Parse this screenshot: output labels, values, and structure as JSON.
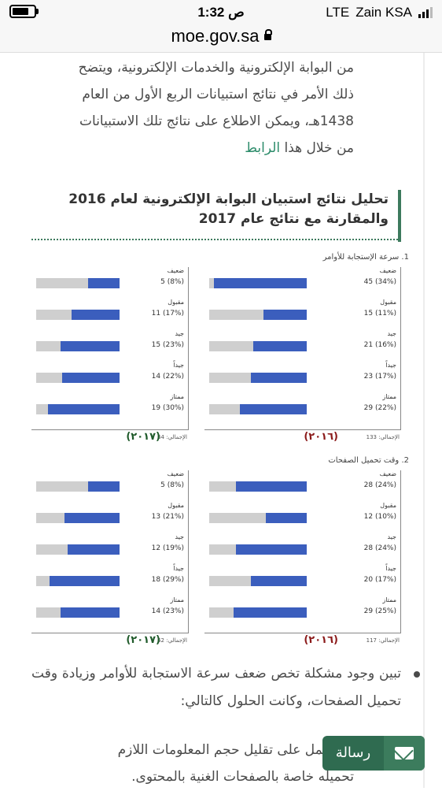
{
  "status_bar": {
    "time": "1:32 ص",
    "network": "LTE",
    "carrier": "Zain KSA"
  },
  "browser": {
    "url": "moe.gov.sa"
  },
  "article": {
    "paragraph_lines": [
      "من البوابة الإلكترونية والخدمات الإلكترونية، ويتضح",
      "ذلك الأمر في نتائج استبيانات الربع الأول من العام",
      "1438هـ، ويمكن الاطلاع على نتائج تلك الاستبيانات"
    ],
    "paragraph_last_prefix": "من خلال هذا ",
    "link_text": "الرابط",
    "heading_line1": "تحليل نتائج استبيان البوابة الإلكترونية لعام 2016",
    "heading_line2": "والمقارنة مع نتائج عام 2017",
    "bullet_text": "تبين وجود مشكلة تخص ضعف سرعة الاستجابة للأوامر وزيادة وقت تحميل الصفحات، وكانت الحلول كالتالي:",
    "bullet2_line1": "تم العمل على تقليل حجم المعلومات اللازم",
    "bullet2_line2": "تحميله خاصة بالصفحات الغنية بالمحتوى."
  },
  "chart_data": [
    {
      "type": "bar",
      "title": "1. سرعة الإستجابة للأوامر",
      "categories": [
        "ضعيف",
        "مقبول",
        "جيد",
        "جيداً",
        "ممتاز"
      ],
      "series": [
        {
          "name": "(٢٠١٦)",
          "values": [
            45,
            15,
            21,
            23,
            29
          ],
          "labels": [
            "45 (34%)",
            "15 (11%)",
            "21 (16%)",
            "23 (17%)",
            "29 (22%)"
          ],
          "percent": [
            34,
            11,
            16,
            17,
            22
          ],
          "total": "الإجمالي: 133"
        },
        {
          "name": "(٢٠١٧)",
          "values": [
            5,
            11,
            15,
            14,
            19
          ],
          "labels": [
            "5 (8%)",
            "11 (17%)",
            "15 (23%)",
            "14 (22%)",
            "19 (30%)"
          ],
          "percent": [
            8,
            17,
            23,
            22,
            30
          ],
          "total": "الإجمالي: 64"
        }
      ]
    },
    {
      "type": "bar",
      "title": "2. وقت تحميل الصفحات",
      "categories": [
        "ضعيف",
        "مقبول",
        "جيد",
        "جيداً",
        "ممتاز"
      ],
      "series": [
        {
          "name": "(٢٠١٦)",
          "values": [
            28,
            12,
            28,
            20,
            29
          ],
          "labels": [
            "28 (24%)",
            "12 (10%)",
            "28 (24%)",
            "20 (17%)",
            "29 (25%)"
          ],
          "percent": [
            24,
            10,
            24,
            17,
            25
          ],
          "total": "الإجمالي: 117"
        },
        {
          "name": "(٢٠١٧)",
          "values": [
            5,
            13,
            12,
            18,
            14
          ],
          "labels": [
            "5 (8%)",
            "13 (21%)",
            "12 (19%)",
            "18 (29%)",
            "14 (23%)"
          ],
          "percent": [
            8,
            21,
            19,
            29,
            23
          ],
          "total": "الإجمالي: 62"
        }
      ]
    }
  ],
  "colors": {
    "bar_fill": "#3b5ebd",
    "bar_track": "#cfcfcf",
    "year_2016": "#8b1a1a",
    "year_2017": "#1f5a2a",
    "accent": "#2f6b50"
  },
  "floating_button": {
    "label": "رسالة",
    "icon": "mail-icon"
  }
}
